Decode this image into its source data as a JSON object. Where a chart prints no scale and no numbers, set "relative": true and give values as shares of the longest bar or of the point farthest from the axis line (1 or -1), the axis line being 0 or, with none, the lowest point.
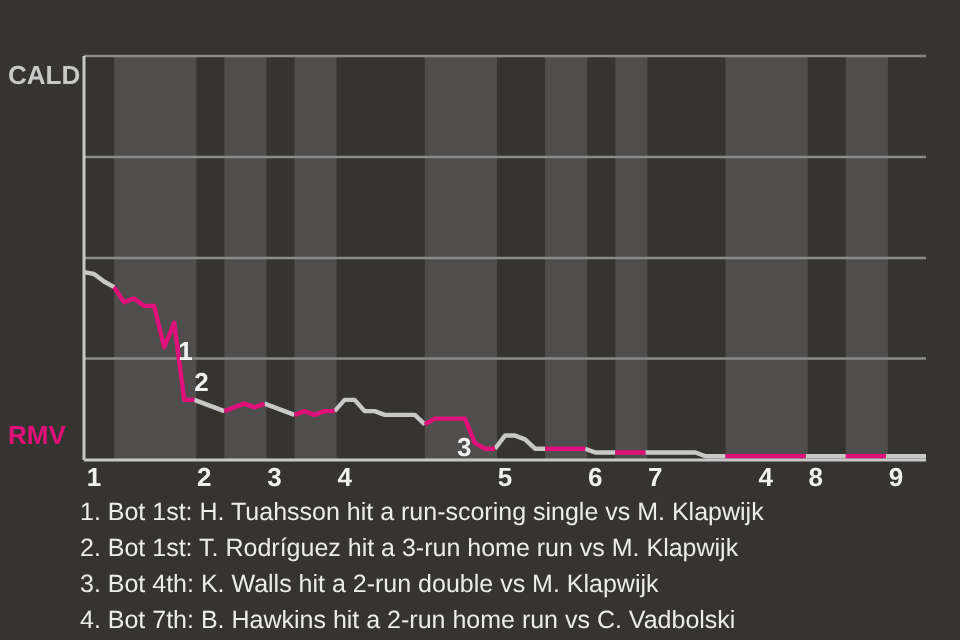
{
  "chart_data": {
    "type": "line",
    "relative": true,
    "categories": [
      null,
      "1",
      null,
      null,
      null,
      null,
      null,
      null,
      null,
      null,
      null,
      null,
      "2",
      null,
      null,
      null,
      null,
      null,
      null,
      "3",
      null,
      null,
      null,
      null,
      null,
      null,
      "4",
      null,
      null,
      null,
      null,
      null,
      null,
      null,
      null,
      null,
      null,
      null,
      null,
      null,
      null,
      null,
      "5",
      null,
      null,
      null,
      null,
      null,
      null,
      null,
      null,
      "6",
      null,
      null,
      null,
      null,
      null,
      "7",
      null,
      null,
      null,
      null,
      null,
      null,
      null,
      null,
      null,
      null,
      "4",
      null,
      null,
      null,
      null,
      "8",
      null,
      null,
      null,
      null,
      null,
      null,
      null,
      "9",
      null,
      null,
      null
    ],
    "series": [
      {
        "color": "#c8c8c8",
        "values": [
          1,
          0.99,
          0.95,
          0.92,
          null,
          null,
          null,
          null,
          null,
          null,
          null,
          0.32,
          0.3,
          0.28,
          0.26,
          null,
          null,
          null,
          0.3,
          0.28,
          0.26,
          0.24,
          null,
          null,
          null,
          0.26,
          0.32,
          0.32,
          0.26,
          0.26,
          0.24,
          0.24,
          0.24,
          0.24,
          0.19,
          null,
          null,
          null,
          null,
          null,
          null,
          0.06,
          0.13,
          0.13,
          0.11,
          0.06,
          0.06,
          null,
          null,
          null,
          0.06,
          0.04,
          0.04,
          0.04,
          null,
          null,
          0.04,
          0.04,
          0.04,
          0.04,
          0.04,
          0.04,
          0.02,
          0.02,
          0.02,
          null,
          null,
          null,
          null,
          null,
          null,
          null,
          0.02,
          0.02,
          0.02,
          0.02,
          0.02,
          null,
          null,
          null,
          0.02,
          0.02,
          0.02,
          0.02,
          0.02
        ]
      },
      {
        "color": "#e0107a",
        "values": [
          null,
          null,
          null,
          0.92,
          0.84,
          0.86,
          0.82,
          0.82,
          0.6,
          0.73,
          0.32,
          0.32,
          null,
          null,
          0.26,
          0.28,
          0.3,
          0.28,
          0.3,
          null,
          null,
          0.24,
          0.26,
          0.24,
          0.26,
          0.26,
          null,
          null,
          null,
          null,
          null,
          null,
          null,
          null,
          0.19,
          0.22,
          0.22,
          0.22,
          0.22,
          0.09,
          0.06,
          0.06,
          null,
          null,
          null,
          null,
          0.06,
          0.06,
          0.06,
          0.06,
          0.06,
          null,
          null,
          0.04,
          0.04,
          0.04,
          0.04,
          null,
          null,
          null,
          null,
          null,
          null,
          null,
          0.02,
          0.02,
          0.02,
          0.02,
          0.02,
          0.02,
          0.02,
          0.02,
          0.02,
          null,
          null,
          null,
          0.02,
          0.02,
          0.02,
          0.02,
          0.02,
          null,
          null,
          null,
          null
        ]
      }
    ],
    "ref_lines": [
      {
        "axis": "y",
        "value": 0.54,
        "color": "#8a8a8a"
      }
    ],
    "annotations": [
      "CALD",
      "RMV",
      {
        "text": "1",
        "y": 0.6
      },
      {
        "text": "2",
        "y": 0.32
      },
      {
        "text": "3",
        "y": 0.06
      },
      "1. Bot 1st: H. Tuahsson hit a run-scoring single vs M. Klapwijk",
      "2. Bot 1st: T. Rodríguez hit a 3-run home run vs M. Klapwijk",
      "3. Bot 4th: K. Walls hit a 2-run double vs M. Klapwijk",
      "4. Bot 7th: B. Hawkins hit a 2-run home run vs C. Vadbolski"
    ]
  }
}
